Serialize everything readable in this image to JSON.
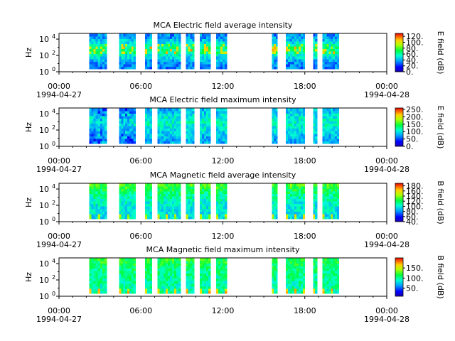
{
  "chart_data": [
    {
      "type": "heatmap",
      "title": "MCA  Electric field average intensity",
      "ylabel": "Hz",
      "colorbar_label": "E field (dB)",
      "y_ticks": [
        {
          "base": "10",
          "exp": "0"
        },
        {
          "base": "10",
          "exp": "2"
        },
        {
          "base": "10",
          "exp": "4"
        }
      ],
      "ylim_log10": [
        0,
        4.7
      ],
      "x_ticks": [
        "00:00",
        "06:00",
        "12:00",
        "18:00",
        "00:00"
      ],
      "x_dates": [
        "1994-04-27",
        "",
        "",
        "",
        "1994-04-28"
      ],
      "xlim_hours": [
        0,
        24
      ],
      "colorbar_ticks": [
        "120.",
        "100.",
        "80.",
        "60.",
        "40.",
        "20.",
        "0."
      ],
      "zlim": [
        0,
        130
      ],
      "data_windows_hours": [
        [
          2.2,
          3.5
        ],
        [
          4.4,
          5.6
        ],
        [
          6.3,
          6.8
        ],
        [
          7.2,
          8.9
        ],
        [
          9.3,
          9.9
        ],
        [
          10.3,
          11.1
        ],
        [
          11.5,
          12.3
        ],
        [
          15.6,
          16.0
        ],
        [
          16.6,
          18.0
        ],
        [
          18.6,
          18.9
        ],
        [
          19.3,
          20.5
        ]
      ]
    },
    {
      "type": "heatmap",
      "title": "MCA  Electric field maximum intensity",
      "ylabel": "Hz",
      "colorbar_label": "E field (dB)",
      "y_ticks": [
        {
          "base": "10",
          "exp": "0"
        },
        {
          "base": "10",
          "exp": "2"
        },
        {
          "base": "10",
          "exp": "4"
        }
      ],
      "ylim_log10": [
        0,
        4.7
      ],
      "x_ticks": [
        "00:00",
        "06:00",
        "12:00",
        "18:00",
        "00:00"
      ],
      "x_dates": [
        "1994-04-27",
        "",
        "",
        "",
        "1994-04-28"
      ],
      "xlim_hours": [
        0,
        24
      ],
      "colorbar_ticks": [
        "250.",
        "200.",
        "150.",
        "100.",
        "50.",
        "0."
      ],
      "zlim": [
        0,
        260
      ],
      "data_windows_hours": [
        [
          2.2,
          3.5
        ],
        [
          4.4,
          5.6
        ],
        [
          6.3,
          6.8
        ],
        [
          7.2,
          8.9
        ],
        [
          9.3,
          9.9
        ],
        [
          10.3,
          11.1
        ],
        [
          11.5,
          12.3
        ],
        [
          15.6,
          16.0
        ],
        [
          16.6,
          18.0
        ],
        [
          18.6,
          18.9
        ],
        [
          19.3,
          20.5
        ]
      ]
    },
    {
      "type": "heatmap",
      "title": "MCA  Magnetic field average intensity",
      "ylabel": "Hz",
      "colorbar_label": "B field (dB)",
      "y_ticks": [
        {
          "base": "10",
          "exp": "0"
        },
        {
          "base": "10",
          "exp": "2"
        },
        {
          "base": "10",
          "exp": "4"
        }
      ],
      "ylim_log10": [
        0,
        4.7
      ],
      "x_ticks": [
        "00:00",
        "06:00",
        "12:00",
        "18:00",
        "00:00"
      ],
      "x_dates": [
        "1994-04-27",
        "",
        "",
        "",
        "1994-04-28"
      ],
      "xlim_hours": [
        0,
        24
      ],
      "colorbar_ticks": [
        "180.",
        "160.",
        "140.",
        "120.",
        "100.",
        "80.",
        "60.",
        "40."
      ],
      "zlim": [
        40,
        190
      ],
      "data_windows_hours": [
        [
          2.2,
          3.5
        ],
        [
          4.4,
          5.6
        ],
        [
          6.3,
          6.8
        ],
        [
          7.2,
          8.9
        ],
        [
          9.3,
          9.9
        ],
        [
          10.3,
          11.1
        ],
        [
          11.5,
          12.3
        ],
        [
          15.6,
          16.0
        ],
        [
          16.6,
          18.0
        ],
        [
          18.6,
          18.9
        ],
        [
          19.3,
          20.5
        ]
      ]
    },
    {
      "type": "heatmap",
      "title": "MCA  Magnetic field maximum intensity",
      "ylabel": "Hz",
      "colorbar_label": "B field (dB)",
      "y_ticks": [
        {
          "base": "10",
          "exp": "0"
        },
        {
          "base": "10",
          "exp": "2"
        },
        {
          "base": "10",
          "exp": "4"
        }
      ],
      "ylim_log10": [
        0,
        4.7
      ],
      "x_ticks": [
        "00:00",
        "06:00",
        "12:00",
        "18:00",
        "00:00"
      ],
      "x_dates": [
        "1994-04-27",
        "",
        "",
        "",
        "1994-04-28"
      ],
      "xlim_hours": [
        0,
        24
      ],
      "colorbar_ticks": [
        "150.",
        "100.",
        "50."
      ],
      "zlim": [
        10,
        200
      ],
      "data_windows_hours": [
        [
          2.2,
          3.5
        ],
        [
          4.4,
          5.6
        ],
        [
          6.3,
          6.8
        ],
        [
          7.2,
          8.9
        ],
        [
          9.3,
          9.9
        ],
        [
          10.3,
          11.1
        ],
        [
          11.5,
          12.3
        ],
        [
          15.6,
          16.0
        ],
        [
          16.6,
          18.0
        ],
        [
          18.6,
          18.9
        ],
        [
          19.3,
          20.5
        ]
      ]
    }
  ]
}
